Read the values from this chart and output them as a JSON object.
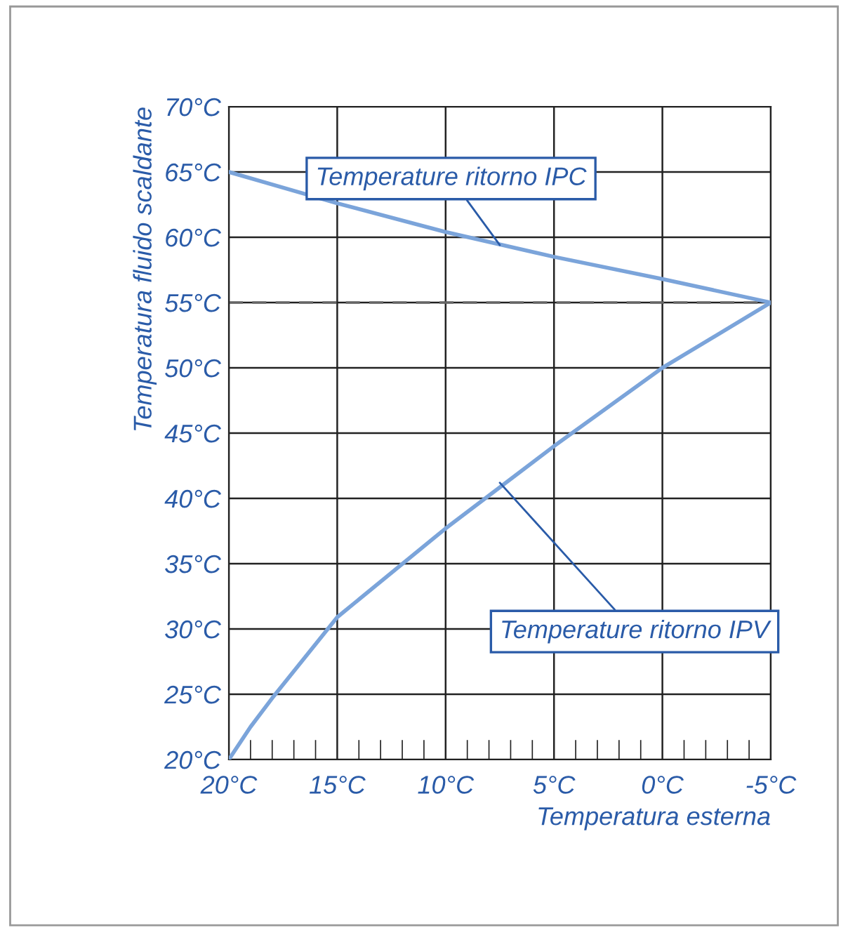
{
  "chart_data": {
    "type": "line",
    "xlabel": "Temperatura esterna",
    "ylabel": "Temperatura fluido scaldante",
    "xlim": [
      20,
      -5
    ],
    "ylim": [
      20,
      70
    ],
    "xticks": [
      {
        "value": 20,
        "label": "20°C"
      },
      {
        "value": 15,
        "label": "15°C"
      },
      {
        "value": 10,
        "label": "10°C"
      },
      {
        "value": 5,
        "label": "5°C"
      },
      {
        "value": 0,
        "label": "0°C"
      },
      {
        "value": -5,
        "label": "-5°C"
      }
    ],
    "yticks": [
      {
        "value": 20,
        "label": "20°C"
      },
      {
        "value": 25,
        "label": "25°C"
      },
      {
        "value": 30,
        "label": "30°C"
      },
      {
        "value": 35,
        "label": "35°C"
      },
      {
        "value": 40,
        "label": "40°C"
      },
      {
        "value": 45,
        "label": "45°C"
      },
      {
        "value": 50,
        "label": "50°C"
      },
      {
        "value": 55,
        "label": "55°C"
      },
      {
        "value": 60,
        "label": "60°C"
      },
      {
        "value": 65,
        "label": "65°C"
      },
      {
        "value": 70,
        "label": "70°C"
      }
    ],
    "grid": true,
    "marker": "none",
    "line_style": "solid",
    "series": [
      {
        "color": "#7ba4da",
        "x": [
          20,
          15,
          10,
          5,
          0,
          -5
        ],
        "values": [
          65,
          62.6,
          60.4,
          58.5,
          56.8,
          55
        ]
      },
      {
        "color": "#7ba4da",
        "x": [
          20,
          19,
          18,
          15,
          10,
          5,
          0,
          -5
        ],
        "values": [
          20,
          22.5,
          24.7,
          30.9,
          37.7,
          44,
          50,
          55
        ]
      }
    ],
    "ref_lines": [
      {
        "axis": "y",
        "value": 55,
        "color": "#666666",
        "line_style": "dashed"
      }
    ],
    "annotations": [
      {
        "text": "Temperature ritorno IPC",
        "x": 7.5,
        "y": 59.4
      },
      {
        "text": "Temperature ritorno IPV",
        "x": 7.5,
        "y": 41.2
      }
    ]
  }
}
